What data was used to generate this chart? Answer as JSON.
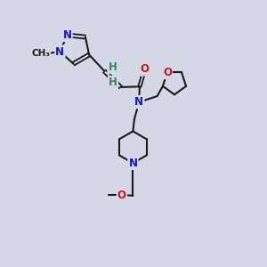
{
  "bg": "#d4d8e6",
  "bc": "#1a1a1a",
  "Nc": "#1414cc",
  "Oc": "#cc1414",
  "Hc": "#2e8b57",
  "lw_s": 1.5,
  "lw_d": 1.3,
  "fs": 8.5,
  "fss": 7.5,
  "xlim": [
    0,
    10
  ],
  "ylim": [
    0,
    10
  ],
  "figsize": [
    3.0,
    3.0
  ],
  "dpi": 100
}
